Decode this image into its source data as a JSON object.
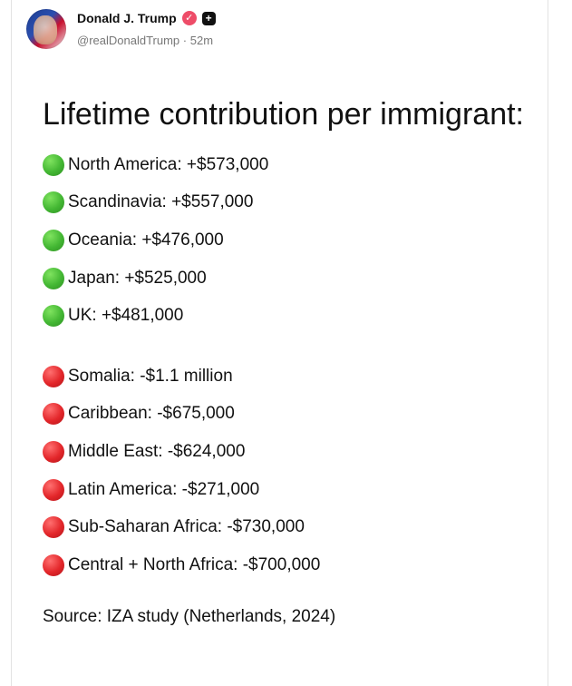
{
  "author": {
    "display_name": "Donald J. Trump",
    "handle": "@realDonaldTrump",
    "separator": "·",
    "time_ago": "52m",
    "verified_icon": "checkmark-badge-icon",
    "plus_icon": "plus-badge-icon"
  },
  "post": {
    "headline": "Lifetime contribution per immigrant:",
    "positive_items": [
      {
        "label": "North America: +$573,000",
        "color": "#43b733"
      },
      {
        "label": "Scandinavia: +$557,000",
        "color": "#43b733"
      },
      {
        "label": "Oceania: +$476,000",
        "color": "#43b733"
      },
      {
        "label": "Japan: +$525,000",
        "color": "#43b733"
      },
      {
        "label": "UK: +$481,000",
        "color": "#43b733"
      }
    ],
    "negative_items": [
      {
        "label": "Somalia: -$1.1 million",
        "color": "#e3262a"
      },
      {
        "label": "Caribbean: -$675,000",
        "color": "#e3262a"
      },
      {
        "label": "Middle East: -$624,000",
        "color": "#e3262a"
      },
      {
        "label": "Latin America: -$271,000",
        "color": "#e3262a"
      },
      {
        "label": "Sub-Saharan Africa: -$730,000",
        "color": "#e3262a"
      },
      {
        "label": "Central + North Africa: -$700,000",
        "color": "#e3262a"
      }
    ],
    "source": "Source: IZA study (Netherlands, 2024)"
  }
}
